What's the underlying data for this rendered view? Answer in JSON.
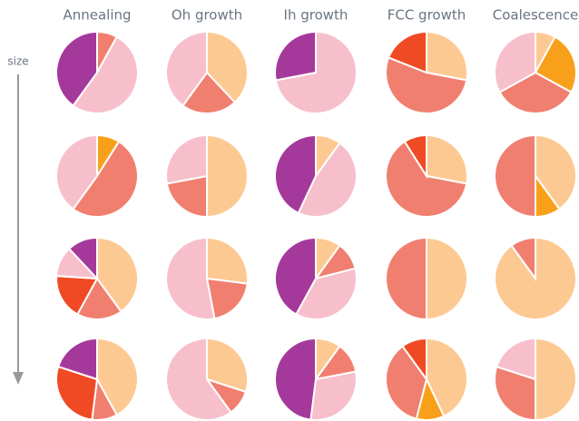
{
  "y_label": "size",
  "chart_data": [
    {
      "type": "pie",
      "title": "Annealing",
      "values": [
        8,
        52,
        40
      ],
      "colors": [
        "#f07f6f",
        "#f7bfcb",
        "#a5399b"
      ]
    },
    {
      "type": "pie",
      "title": "Oh growth",
      "values": [
        38,
        22,
        40
      ],
      "colors": [
        "#fdc993",
        "#f07f6f",
        "#f7bfcb"
      ]
    },
    {
      "type": "pie",
      "title": "Ih growth",
      "values": [
        72,
        28
      ],
      "colors": [
        "#f7bfcb",
        "#a5399b"
      ]
    },
    {
      "type": "pie",
      "title": "FCC growth",
      "values": [
        28,
        53,
        19
      ],
      "colors": [
        "#fdc993",
        "#f07f6f",
        "#f04a24"
      ]
    },
    {
      "type": "pie",
      "title": "Coalescence",
      "values": [
        8,
        25,
        34,
        33
      ],
      "colors": [
        "#fdc993",
        "#f9a01b",
        "#f07f6f",
        "#f7bfcb"
      ]
    },
    {
      "type": "pie",
      "values": [
        9,
        51,
        40
      ],
      "colors": [
        "#f9a01b",
        "#f07f6f",
        "#f7bfcb"
      ]
    },
    {
      "type": "pie",
      "values": [
        50,
        22,
        28
      ],
      "colors": [
        "#fdc993",
        "#f07f6f",
        "#f7bfcb"
      ]
    },
    {
      "type": "pie",
      "values": [
        10,
        47,
        43
      ],
      "colors": [
        "#fdc993",
        "#f7bfcb",
        "#a5399b"
      ]
    },
    {
      "type": "pie",
      "values": [
        28,
        63,
        9
      ],
      "colors": [
        "#fdc993",
        "#f07f6f",
        "#f04a24"
      ]
    },
    {
      "type": "pie",
      "values": [
        40,
        10,
        50
      ],
      "colors": [
        "#fdc993",
        "#f9a01b",
        "#f07f6f"
      ]
    },
    {
      "type": "pie",
      "values": [
        40,
        18,
        18,
        12,
        12
      ],
      "colors": [
        "#fdc993",
        "#f07f6f",
        "#f04a24",
        "#f7bfcb",
        "#a5399b"
      ]
    },
    {
      "type": "pie",
      "values": [
        27,
        20,
        53
      ],
      "colors": [
        "#fdc993",
        "#f07f6f",
        "#f7bfcb"
      ]
    },
    {
      "type": "pie",
      "values": [
        10,
        11,
        37,
        42
      ],
      "colors": [
        "#fdc993",
        "#f07f6f",
        "#f7bfcb",
        "#a5399b"
      ]
    },
    {
      "type": "pie",
      "values": [
        50,
        50
      ],
      "colors": [
        "#fdc993",
        "#f07f6f"
      ]
    },
    {
      "type": "pie",
      "values": [
        90,
        10
      ],
      "colors": [
        "#fdc993",
        "#f07f6f"
      ]
    },
    {
      "type": "pie",
      "values": [
        42,
        10,
        28,
        20
      ],
      "colors": [
        "#fdc993",
        "#f07f6f",
        "#f04a24",
        "#a5399b"
      ]
    },
    {
      "type": "pie",
      "values": [
        30,
        10,
        60
      ],
      "colors": [
        "#fdc993",
        "#f07f6f",
        "#f7bfcb"
      ]
    },
    {
      "type": "pie",
      "values": [
        10,
        12,
        30,
        48
      ],
      "colors": [
        "#fdc993",
        "#f07f6f",
        "#f7bfcb",
        "#a5399b"
      ]
    },
    {
      "type": "pie",
      "values": [
        43,
        11,
        36,
        10
      ],
      "colors": [
        "#fdc993",
        "#f9a01b",
        "#f07f6f",
        "#f04a24"
      ]
    },
    {
      "type": "pie",
      "values": [
        50,
        30,
        20
      ],
      "colors": [
        "#fdc993",
        "#f07f6f",
        "#f7bfcb"
      ]
    }
  ]
}
